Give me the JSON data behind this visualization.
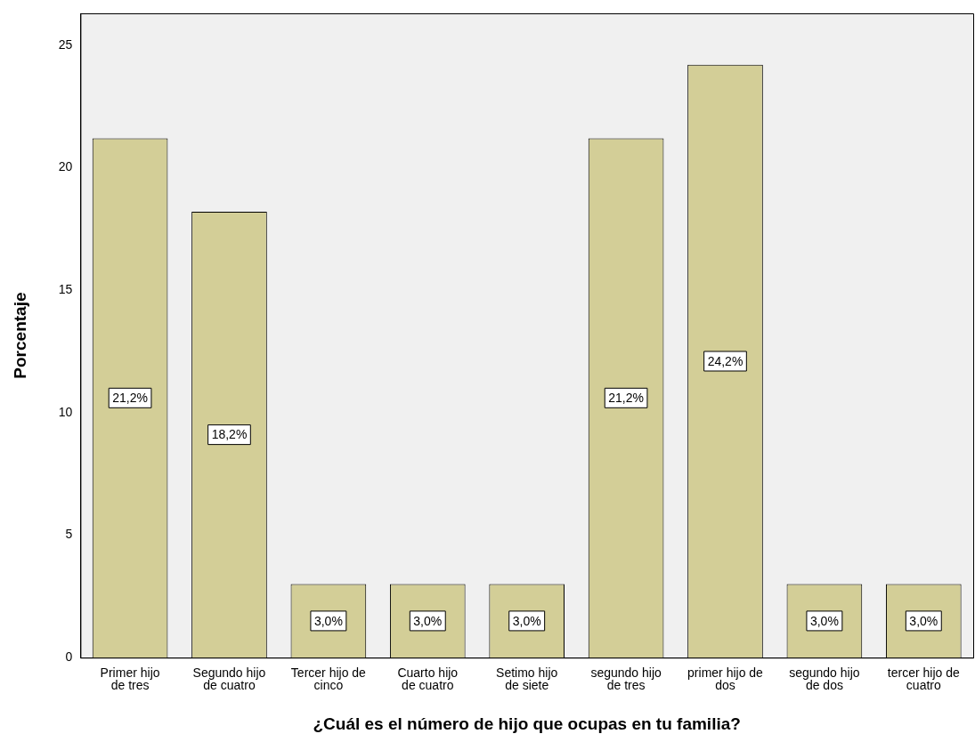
{
  "chart_data": {
    "type": "bar",
    "xlabel": "¿Cuál es el número de hijo que ocupas en tu familia?",
    "ylabel": "Porcentaje",
    "categories": [
      "Primer hijo de tres",
      "Segundo hijo de cuatro",
      "Tercer hijo de cinco",
      "Cuarto hijo de cuatro",
      "Setimo hijo de siete",
      "segundo hijo de tres",
      "primer hijo de dos",
      "segundo hijo de dos",
      "tercer hijo de cuatro"
    ],
    "values": [
      21.2,
      18.2,
      3.0,
      3.0,
      3.0,
      21.2,
      24.2,
      3.0,
      3.0
    ],
    "value_labels": [
      "21,2%",
      "18,2%",
      "3,0%",
      "3,0%",
      "3,0%",
      "21,2%",
      "24,2%",
      "3,0%",
      "3,0%"
    ],
    "color": "#d3ce97",
    "ylim": [
      0,
      26.3
    ],
    "yticks": [
      0,
      5,
      10,
      15,
      20,
      25
    ],
    "grid": false,
    "legend": false
  }
}
